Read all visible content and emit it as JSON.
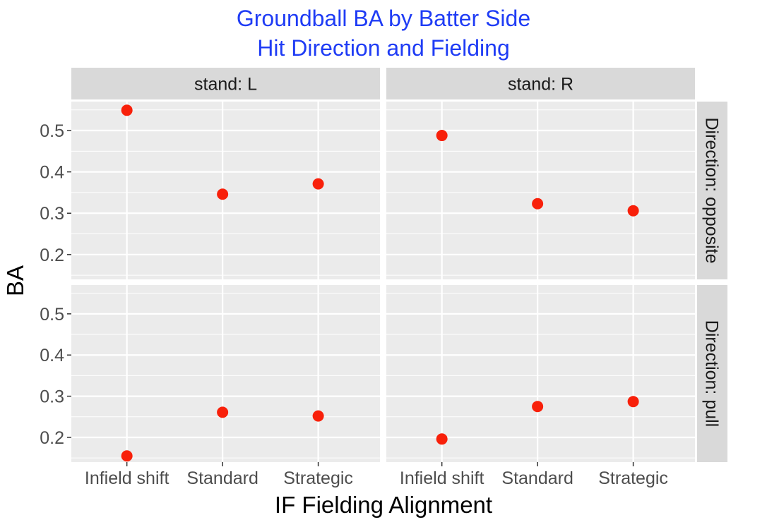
{
  "chart_data": {
    "type": "scatter",
    "title": [
      "Groundball BA by Batter Side",
      "Hit Direction and Fielding"
    ],
    "title_color": "#1f3cf5",
    "xlabel": "IF Fielding Alignment",
    "ylabel": "BA",
    "categories": [
      "Infield shift",
      "Standard",
      "Strategic"
    ],
    "facet_columns": [
      "stand: L",
      "stand: R"
    ],
    "facet_rows": [
      "Direction: opposite",
      "Direction: pull"
    ],
    "ylim": [
      0.14,
      0.57
    ],
    "yticks": [
      0.2,
      0.3,
      0.4,
      0.5
    ],
    "ytick_labels": [
      "0.2",
      "0.3",
      "0.4",
      "0.5"
    ],
    "point_color": "#f8200a",
    "panel_background": "#ebebeb",
    "strip_background": "#d9d9d9",
    "grid": true,
    "panels": [
      {
        "column": "stand: L",
        "row": "Direction: opposite",
        "values": [
          0.549,
          0.346,
          0.371
        ]
      },
      {
        "column": "stand: R",
        "row": "Direction: opposite",
        "values": [
          0.488,
          0.323,
          0.306
        ]
      },
      {
        "column": "stand: L",
        "row": "Direction: pull",
        "values": [
          0.155,
          0.261,
          0.252
        ]
      },
      {
        "column": "stand: R",
        "row": "Direction: pull",
        "values": [
          0.196,
          0.275,
          0.287
        ]
      }
    ]
  }
}
